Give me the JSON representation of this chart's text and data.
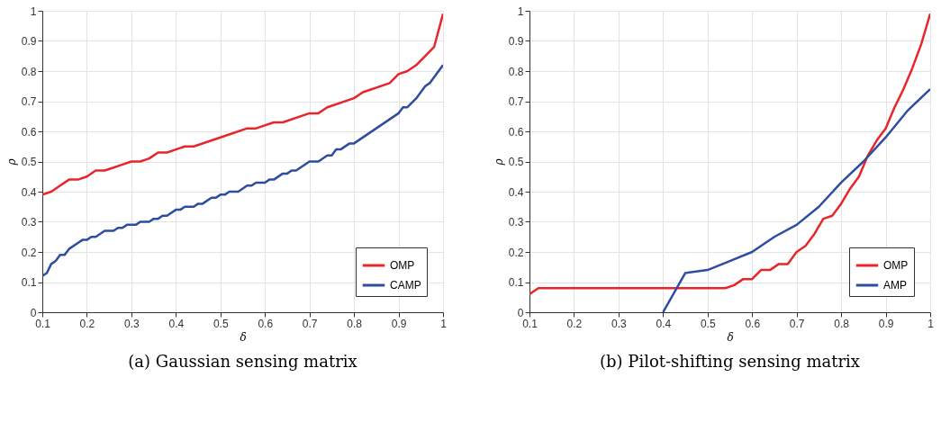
{
  "chart_data": [
    {
      "type": "line",
      "title": "(a) Gaussian sensing matrix",
      "xlabel": "δ",
      "ylabel": "ρ",
      "xlim": [
        0.1,
        1
      ],
      "ylim": [
        0,
        1
      ],
      "xticks": [
        0.1,
        0.2,
        0.3,
        0.4,
        0.5,
        0.6,
        0.7,
        0.8,
        0.9,
        1
      ],
      "yticks": [
        0,
        0.1,
        0.2,
        0.3,
        0.4,
        0.5,
        0.6,
        0.7,
        0.8,
        0.9,
        1
      ],
      "grid": true,
      "legend": "bottom right",
      "line_style": "solid",
      "series": [
        {
          "name": "OMP",
          "color": "#e8262a",
          "x": [
            0.1,
            0.12,
            0.14,
            0.16,
            0.18,
            0.2,
            0.22,
            0.24,
            0.26,
            0.28,
            0.3,
            0.32,
            0.34,
            0.36,
            0.38,
            0.4,
            0.42,
            0.44,
            0.5,
            0.56,
            0.58,
            0.62,
            0.64,
            0.7,
            0.72,
            0.74,
            0.8,
            0.82,
            0.88,
            0.9,
            0.92,
            0.94,
            0.98,
            1.0
          ],
          "values": [
            0.39,
            0.4,
            0.42,
            0.44,
            0.44,
            0.45,
            0.47,
            0.47,
            0.48,
            0.49,
            0.5,
            0.5,
            0.51,
            0.53,
            0.53,
            0.54,
            0.55,
            0.55,
            0.58,
            0.61,
            0.61,
            0.63,
            0.63,
            0.66,
            0.66,
            0.68,
            0.71,
            0.73,
            0.76,
            0.79,
            0.8,
            0.82,
            0.88,
            0.99
          ]
        },
        {
          "name": "CAMP",
          "color": "#2e4da0",
          "x": [
            0.1,
            0.11,
            0.12,
            0.13,
            0.14,
            0.15,
            0.16,
            0.18,
            0.19,
            0.2,
            0.21,
            0.22,
            0.24,
            0.26,
            0.27,
            0.28,
            0.29,
            0.31,
            0.32,
            0.34,
            0.35,
            0.36,
            0.37,
            0.38,
            0.4,
            0.41,
            0.42,
            0.44,
            0.45,
            0.46,
            0.48,
            0.49,
            0.5,
            0.51,
            0.52,
            0.54,
            0.56,
            0.57,
            0.58,
            0.6,
            0.61,
            0.62,
            0.64,
            0.65,
            0.66,
            0.67,
            0.7,
            0.72,
            0.74,
            0.75,
            0.76,
            0.77,
            0.79,
            0.8,
            0.88,
            0.9,
            0.91,
            0.92,
            0.94,
            0.96,
            0.97,
            1.0
          ],
          "values": [
            0.12,
            0.13,
            0.16,
            0.17,
            0.19,
            0.19,
            0.21,
            0.23,
            0.24,
            0.24,
            0.25,
            0.25,
            0.27,
            0.27,
            0.28,
            0.28,
            0.29,
            0.29,
            0.3,
            0.3,
            0.31,
            0.31,
            0.32,
            0.32,
            0.34,
            0.34,
            0.35,
            0.35,
            0.36,
            0.36,
            0.38,
            0.38,
            0.39,
            0.39,
            0.4,
            0.4,
            0.42,
            0.42,
            0.43,
            0.43,
            0.44,
            0.44,
            0.46,
            0.46,
            0.47,
            0.47,
            0.5,
            0.5,
            0.52,
            0.52,
            0.54,
            0.54,
            0.56,
            0.56,
            0.64,
            0.66,
            0.68,
            0.68,
            0.71,
            0.75,
            0.76,
            0.82
          ]
        }
      ]
    },
    {
      "type": "line",
      "title": "(b) Pilot-shifting sensing matrix",
      "xlabel": "δ",
      "ylabel": "ρ",
      "xlim": [
        0.1,
        1
      ],
      "ylim": [
        0,
        1
      ],
      "xticks": [
        0.1,
        0.2,
        0.3,
        0.4,
        0.5,
        0.6,
        0.7,
        0.8,
        0.9,
        1
      ],
      "yticks": [
        0,
        0.1,
        0.2,
        0.3,
        0.4,
        0.5,
        0.6,
        0.7,
        0.8,
        0.9,
        1
      ],
      "grid": true,
      "legend": "bottom right",
      "line_style": "solid",
      "series": [
        {
          "name": "OMP",
          "color": "#e8262a",
          "x": [
            0.1,
            0.12,
            0.54,
            0.56,
            0.58,
            0.6,
            0.62,
            0.64,
            0.66,
            0.68,
            0.7,
            0.72,
            0.74,
            0.76,
            0.78,
            0.8,
            0.82,
            0.84,
            0.86,
            0.88,
            0.9,
            0.92,
            0.94,
            0.96,
            0.98,
            1.0
          ],
          "values": [
            0.06,
            0.08,
            0.08,
            0.09,
            0.11,
            0.11,
            0.14,
            0.14,
            0.16,
            0.16,
            0.2,
            0.22,
            0.26,
            0.31,
            0.32,
            0.36,
            0.41,
            0.45,
            0.52,
            0.57,
            0.61,
            0.68,
            0.74,
            0.81,
            0.89,
            0.99
          ]
        },
        {
          "name": "AMP",
          "color": "#2e4da0",
          "x": [
            0.4,
            0.45,
            0.5,
            0.55,
            0.6,
            0.65,
            0.7,
            0.75,
            0.8,
            0.85,
            0.9,
            0.95,
            1.0
          ],
          "values": [
            0,
            0.13,
            0.14,
            0.17,
            0.2,
            0.25,
            0.29,
            0.35,
            0.43,
            0.5,
            0.58,
            0.67,
            0.74
          ]
        }
      ]
    }
  ]
}
